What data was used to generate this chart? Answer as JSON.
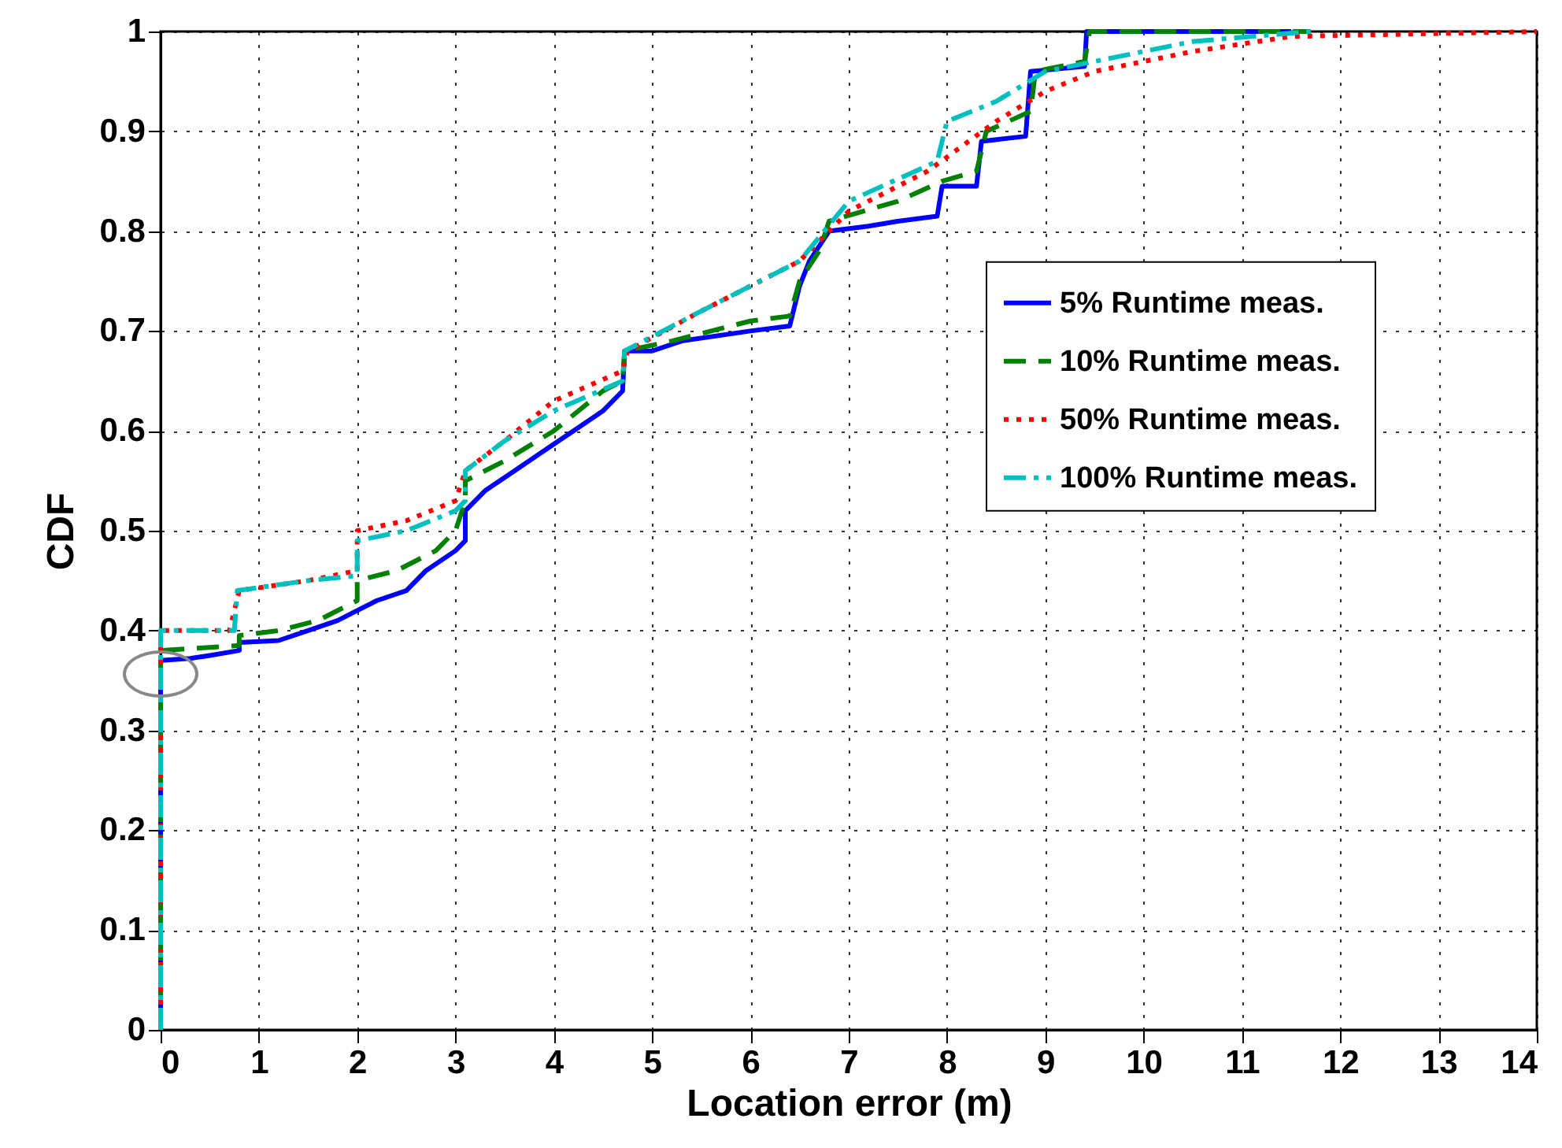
{
  "chart_data": {
    "type": "line",
    "xlabel": "Location error (m)",
    "ylabel": "CDF",
    "xlim": [
      0,
      14
    ],
    "ylim": [
      0,
      1
    ],
    "xticks": [
      0,
      1,
      2,
      3,
      4,
      5,
      6,
      7,
      8,
      9,
      10,
      11,
      12,
      13,
      14
    ],
    "yticks": [
      0,
      0.1,
      0.2,
      0.3,
      0.4,
      0.5,
      0.6,
      0.7,
      0.8,
      0.9,
      1
    ],
    "grid": true,
    "legend": "right",
    "series": [
      {
        "name": "5% Runtime meas.",
        "color": "#0000ff",
        "line_style": "solid",
        "x": [
          0,
          0,
          0.3,
          0.5,
          0.8,
          0.8,
          1.2,
          1.5,
          1.8,
          2.0,
          2.2,
          2.5,
          2.7,
          3.0,
          3.1,
          3.1,
          3.3,
          3.6,
          3.9,
          4.2,
          4.5,
          4.7,
          4.72,
          5.0,
          5.3,
          6.0,
          6.4,
          6.5,
          6.6,
          6.8,
          7.2,
          7.5,
          7.9,
          7.95,
          8.3,
          8.35,
          8.8,
          8.85,
          9.4,
          9.42,
          11.5
        ],
        "values": [
          0,
          0.37,
          0.372,
          0.375,
          0.38,
          0.388,
          0.39,
          0.4,
          0.41,
          0.42,
          0.43,
          0.44,
          0.46,
          0.48,
          0.49,
          0.52,
          0.54,
          0.56,
          0.58,
          0.6,
          0.62,
          0.64,
          0.68,
          0.68,
          0.69,
          0.7,
          0.705,
          0.745,
          0.77,
          0.8,
          0.805,
          0.81,
          0.815,
          0.845,
          0.845,
          0.89,
          0.895,
          0.96,
          0.965,
          1,
          1
        ]
      },
      {
        "name": "10% Runtime meas.",
        "color": "#008000",
        "line_style": "dashed",
        "x": [
          0,
          0,
          0.8,
          0.8,
          1.2,
          1.6,
          2.0,
          2.0,
          2.4,
          2.8,
          3.0,
          3.1,
          3.1,
          3.5,
          4.0,
          4.5,
          4.7,
          4.72,
          5.2,
          6.0,
          6.4,
          6.5,
          6.7,
          6.8,
          7.5,
          7.95,
          8.3,
          8.4,
          8.85,
          8.9,
          9.4,
          9.45,
          11.7
        ],
        "values": [
          0,
          0.38,
          0.385,
          0.395,
          0.4,
          0.41,
          0.43,
          0.45,
          0.46,
          0.48,
          0.5,
          0.53,
          0.55,
          0.57,
          0.6,
          0.64,
          0.65,
          0.68,
          0.69,
          0.71,
          0.715,
          0.75,
          0.78,
          0.81,
          0.83,
          0.85,
          0.86,
          0.9,
          0.92,
          0.96,
          0.97,
          1,
          1
        ]
      },
      {
        "name": "50% Runtime meas.",
        "color": "#ff0000",
        "line_style": "dotted",
        "x": [
          0,
          0,
          0.7,
          0.8,
          1.5,
          2.0,
          2.0,
          2.5,
          3.0,
          3.1,
          3.5,
          4.0,
          4.7,
          4.75,
          5.5,
          6.5,
          7.0,
          7.8,
          8.5,
          9.0,
          9.5,
          10.5,
          11.5,
          14
        ],
        "values": [
          0,
          0.4,
          0.4,
          0.44,
          0.45,
          0.46,
          0.5,
          0.51,
          0.53,
          0.56,
          0.59,
          0.63,
          0.66,
          0.68,
          0.72,
          0.77,
          0.82,
          0.86,
          0.91,
          0.94,
          0.96,
          0.98,
          0.995,
          1
        ]
      },
      {
        "name": "100% Runtime meas.",
        "color": "#00bfbf",
        "line_style": "dashdot",
        "x": [
          0,
          0,
          0.75,
          0.78,
          1.5,
          2.0,
          2.0,
          2.5,
          3.0,
          3.1,
          3.1,
          3.5,
          4.0,
          4.7,
          4.72,
          5.5,
          6.5,
          7.0,
          7.9,
          8.0,
          8.5,
          9.0,
          9.5,
          10.5,
          11.7
        ],
        "values": [
          0,
          0.4,
          0.4,
          0.44,
          0.45,
          0.455,
          0.49,
          0.5,
          0.52,
          0.53,
          0.56,
          0.59,
          0.62,
          0.65,
          0.68,
          0.72,
          0.77,
          0.83,
          0.87,
          0.91,
          0.93,
          0.96,
          0.97,
          0.99,
          1
        ]
      }
    ]
  }
}
